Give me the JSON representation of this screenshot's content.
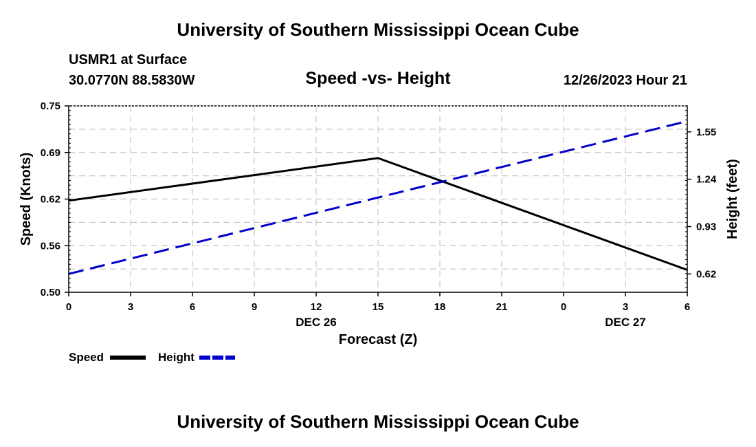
{
  "header": {
    "title": "University of Southern Mississippi Ocean Cube",
    "station": "USMR1 at Surface",
    "coords": "30.0770N  88.5830W",
    "subtitle": "Speed -vs- Height",
    "datetime": "12/26/2023 Hour 21"
  },
  "footer": {
    "title": "University of Southern Mississippi Ocean Cube"
  },
  "chart_data": {
    "type": "line",
    "title": "Speed -vs- Height",
    "xlabel": "Forecast (Z)",
    "ylabel": "Speed (Knots)",
    "y2label": "Height (feet)",
    "x_ticks": [
      "0",
      "3",
      "6",
      "9",
      "12",
      "15",
      "18",
      "21",
      "0",
      "3",
      "6"
    ],
    "x_hours": [
      0,
      3,
      6,
      9,
      12,
      15,
      18,
      21,
      24,
      27,
      30
    ],
    "date_labels": [
      {
        "label": "DEC 26",
        "hour": 12
      },
      {
        "label": "DEC 27",
        "hour": 27
      }
    ],
    "xlim": [
      0,
      30
    ],
    "ylim": [
      0.5,
      0.75
    ],
    "y_ticks": [
      "0.50",
      "0.56",
      "0.62",
      "0.69",
      "0.75"
    ],
    "y_tick_values": [
      0.5,
      0.5625,
      0.625,
      0.6875,
      0.75
    ],
    "y2lim": [
      0.5,
      1.72
    ],
    "y2_ticks": [
      "0.62",
      "0.93",
      "1.24",
      "1.55"
    ],
    "y2_tick_values": [
      0.62,
      0.93,
      1.24,
      1.55
    ],
    "grid": true,
    "series": [
      {
        "name": "Speed",
        "axis": "left",
        "style": "solid",
        "color": "#000000",
        "x": [
          0,
          15,
          30
        ],
        "values": [
          0.623,
          0.68,
          0.53
        ]
      },
      {
        "name": "Height",
        "axis": "right",
        "style": "dashed",
        "color": "#0000cc",
        "x": [
          0,
          30
        ],
        "values": [
          0.62,
          1.62
        ]
      }
    ],
    "legend": [
      {
        "label": "Speed",
        "color": "#000000",
        "style": "solid"
      },
      {
        "label": "Height",
        "color": "#0000cc",
        "style": "dashed"
      }
    ]
  }
}
